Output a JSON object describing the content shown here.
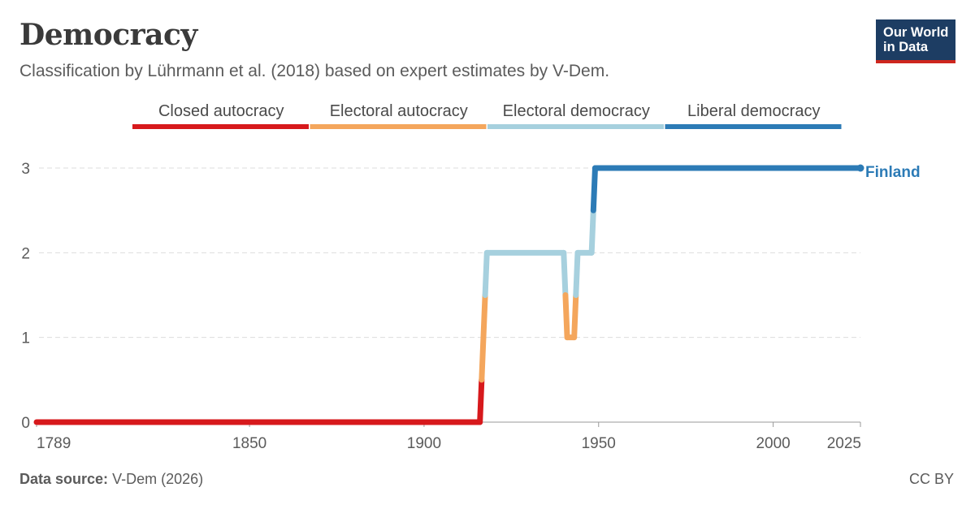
{
  "title": "Democracy",
  "subtitle": "Classification by Lührmann et al. (2018) based on expert estimates by V-Dem.",
  "logo": {
    "line1": "Our World",
    "line2": "in Data"
  },
  "footer": {
    "source_label": "Data source:",
    "source_value": "V-Dem (2026)",
    "license": "CC BY"
  },
  "colors": {
    "closed_autocracy": "#d7191c",
    "electoral_autocracy": "#f4a65c",
    "electoral_democracy": "#a6d0de",
    "liberal_democracy": "#2c7bb6",
    "logo_bg": "#1d3d63",
    "logo_accent": "#ce261e"
  },
  "chart_data": {
    "type": "line",
    "title": "Democracy",
    "subtitle": "Classification by Lührmann et al. (2018) based on expert estimates by V-Dem.",
    "xlim": [
      1789,
      2025
    ],
    "ylim": [
      0,
      3
    ],
    "x_ticks": [
      1789,
      1850,
      1900,
      1950,
      2000,
      2025
    ],
    "y_ticks": [
      0,
      1,
      2,
      3
    ],
    "grid": "horizontal dashed",
    "legend": {
      "placement": "top",
      "entries": [
        {
          "label": "Closed autocracy",
          "value": 0,
          "color": "#d7191c"
        },
        {
          "label": "Electoral autocracy",
          "value": 1,
          "color": "#f4a65c"
        },
        {
          "label": "Electoral democracy",
          "value": 2,
          "color": "#a6d0de"
        },
        {
          "label": "Liberal democracy",
          "value": 3,
          "color": "#2c7bb6"
        }
      ]
    },
    "series": [
      {
        "name": "Finland",
        "points": [
          [
            1789,
            0
          ],
          [
            1916,
            0
          ],
          [
            1917,
            1
          ],
          [
            1918,
            2
          ],
          [
            1940,
            2
          ],
          [
            1941,
            1
          ],
          [
            1943,
            1
          ],
          [
            1944,
            2
          ],
          [
            1948,
            2
          ],
          [
            1949,
            3
          ],
          [
            2025,
            3
          ]
        ]
      }
    ]
  }
}
